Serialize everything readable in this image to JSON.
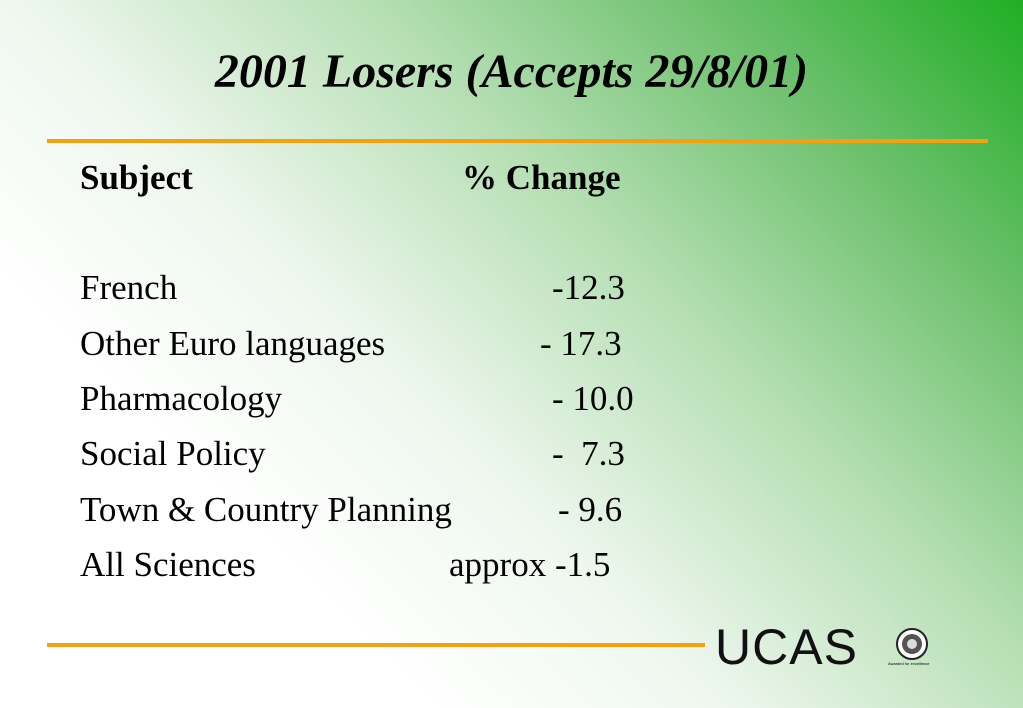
{
  "title": "2001 Losers (Accepts 29/8/01)",
  "table": {
    "header": [
      "Subject",
      "% Change"
    ],
    "rows": [
      [
        "French",
        "-12.3"
      ],
      [
        "Other Euro languages",
        "- 17.3"
      ],
      [
        "Pharmacology",
        "- 10.0"
      ],
      [
        "Social Policy",
        "-  7.3"
      ],
      [
        "Town & Country Planning",
        "- 9.6"
      ],
      [
        "All Sciences",
        "approx -1.5"
      ]
    ]
  },
  "logo": {
    "text": "UCAS",
    "badge": "Awarded for excellence"
  }
}
